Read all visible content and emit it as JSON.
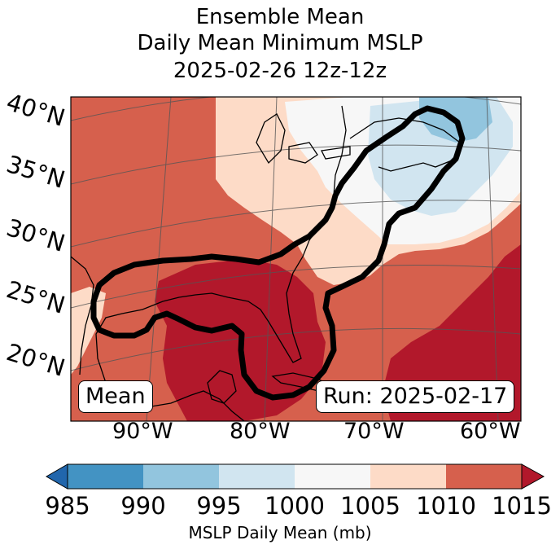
{
  "title": {
    "line1": "Ensemble Mean",
    "line2": "Daily Mean Minimum MSLP",
    "line3": "2025-02-26 12z-12z"
  },
  "map": {
    "lat_labels": [
      "40°N",
      "35°N",
      "30°N",
      "25°N",
      "20°N"
    ],
    "lon_labels": [
      "90°W",
      "80°W",
      "70°W",
      "60°W"
    ],
    "mean_label": "Mean",
    "run_label": "Run: 2025-02-17",
    "contour_color": "#000000",
    "land_border_color": "#000000"
  },
  "colorbar": {
    "label": "MSLP Daily Mean (mb)",
    "ticks": [
      "985",
      "990",
      "995",
      "1000",
      "1005",
      "1010",
      "1015"
    ],
    "colors": {
      "lt985": "#2166ac",
      "b985_990": "#4393c3",
      "b990_995": "#92c5de",
      "b995_1000": "#d1e5f0",
      "b1000_1005": "#f7f7f7",
      "b1005_1010": "#fddbc7",
      "b1010_1015": "#d6604d",
      "gt1015": "#b2182b"
    }
  }
}
